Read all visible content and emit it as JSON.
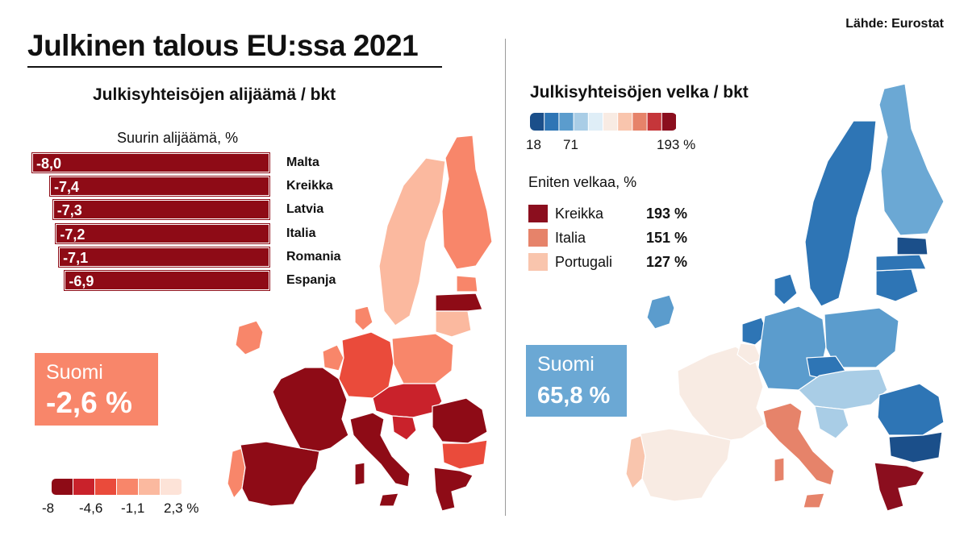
{
  "header": {
    "title": "Julkinen talous EU:ssa 2021",
    "source": "Lähde: Eurostat"
  },
  "left": {
    "subtitle": "Julkisyhteisöjen alijäämä / bkt",
    "bars_heading": "Suurin alijäämä, %",
    "finland_label": "Suomi",
    "finland_value": "-2,6 %",
    "scale_labels": [
      "-8",
      "-4,6",
      "-1,1",
      "2,3 %"
    ]
  },
  "right": {
    "subtitle": "Julkisyhteisöjen velka / bkt",
    "scale_labels": [
      "18",
      "71",
      "193 %"
    ],
    "top_heading": "Eniten velkaa, %",
    "finland_label": "Suomi",
    "finland_value": "65,8 %"
  },
  "colors": {
    "deficit_scale": [
      "#8e0b16",
      "#c9222b",
      "#ea4b3b",
      "#f8866a",
      "#fbb99f",
      "#fde3d8"
    ],
    "debt_scale": [
      "#1b4f8a",
      "#2e75b5",
      "#5b9ccd",
      "#a9cde6",
      "#dfeef7",
      "#f8ebe3",
      "#f9c5ad",
      "#e6836a",
      "#c5363a",
      "#8b0e1e"
    ],
    "finland_deficit": "#f8866a",
    "finland_debt": "#6ba8d4"
  },
  "chart_data": [
    {
      "type": "bar",
      "title": "Suurin alijäämä, %",
      "categories": [
        "Malta",
        "Kreikka",
        "Latvia",
        "Italia",
        "Romania",
        "Espanja"
      ],
      "values": [
        -8.0,
        -7.4,
        -7.3,
        -7.2,
        -7.1,
        -6.9
      ],
      "labels": [
        "-8,0",
        "-7,4",
        "-7,3",
        "-7,2",
        "-7,1",
        "-6,9"
      ]
    },
    {
      "type": "table",
      "title": "Eniten velkaa, %",
      "rows": [
        {
          "country": "Kreikka",
          "value": 193,
          "label": "193 %",
          "color": "#8b0e1e"
        },
        {
          "country": "Italia",
          "value": 151,
          "label": "151 %",
          "color": "#e6836a"
        },
        {
          "country": "Portugali",
          "value": 127,
          "label": "127 %",
          "color": "#f9c5ad"
        }
      ]
    }
  ]
}
